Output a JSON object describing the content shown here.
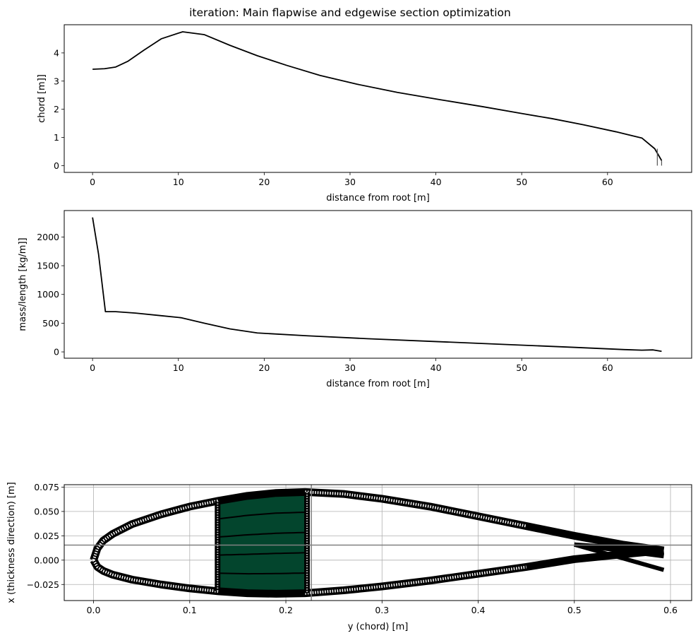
{
  "figure": {
    "title": "iteration: Main flapwise and edgewise section optimization"
  },
  "chart_data": [
    {
      "type": "line",
      "xlabel": "distance from root [m]",
      "ylabel": "chord [m]]",
      "xlim": [
        -3.3,
        69.8
      ],
      "ylim": [
        -0.24,
        5.0
      ],
      "xticks": [
        0,
        10,
        20,
        30,
        40,
        50,
        60
      ],
      "yticks": [
        0,
        1,
        2,
        3,
        4
      ],
      "grid": false,
      "series": [
        {
          "color": "#000000",
          "x": [
            0,
            1.4,
            2.7,
            4.1,
            6.0,
            8.0,
            10.5,
            13.0,
            16.0,
            19.2,
            22.6,
            26.5,
            30.8,
            35.5,
            40.5,
            45.5,
            50.0,
            53.5,
            57.2,
            61.0,
            64.0,
            65.5,
            66.3
          ],
          "y": [
            3.42,
            3.44,
            3.5,
            3.7,
            4.1,
            4.5,
            4.75,
            4.65,
            4.27,
            3.9,
            3.56,
            3.2,
            2.89,
            2.6,
            2.34,
            2.09,
            1.85,
            1.67,
            1.45,
            1.2,
            0.98,
            0.6,
            0.18
          ]
        },
        {
          "color": "#555555",
          "x": [
            65.8,
            65.8
          ],
          "y": [
            0.0,
            0.6
          ]
        },
        {
          "color": "#555555",
          "x": [
            66.3,
            66.3
          ],
          "y": [
            0.0,
            0.18
          ]
        }
      ]
    },
    {
      "type": "line",
      "xlabel": "distance from root [m]",
      "ylabel": "mass/length [kg/m]]",
      "xlim": [
        -3.3,
        69.8
      ],
      "ylim": [
        -110,
        2460
      ],
      "xticks": [
        0,
        10,
        20,
        30,
        40,
        50,
        60
      ],
      "yticks": [
        0,
        500,
        1000,
        1500,
        2000
      ],
      "grid": false,
      "series": [
        {
          "color": "#000000",
          "x": [
            0,
            0.7,
            1.5,
            2.7,
            5.0,
            8.0,
            10.3,
            13.0,
            16.0,
            19.2,
            25.0,
            32.0,
            40.0,
            48.0,
            56.0,
            62.0,
            64.0,
            65.3,
            66.3
          ],
          "y": [
            2340,
            1700,
            700,
            700,
            675,
            630,
            595,
            500,
            400,
            330,
            280,
            230,
            180,
            130,
            80,
            40,
            30,
            35,
            10
          ]
        }
      ]
    },
    {
      "type": "line",
      "xlabel": "y (chord) [m]",
      "ylabel": "x (thickness direction) [m]",
      "xlim": [
        -0.0305,
        0.622
      ],
      "ylim": [
        -0.0415,
        0.0775
      ],
      "xticks": [
        0.0,
        0.1,
        0.2,
        0.3,
        0.4,
        0.5,
        0.6
      ],
      "yticks": [
        -0.025,
        0.0,
        0.025,
        0.05,
        0.075
      ],
      "xticklabels": [
        "0.0",
        "0.1",
        "0.2",
        "0.3",
        "0.4",
        "0.5",
        "0.6"
      ],
      "yticklabels": [
        "−0.025",
        "0.000",
        "0.025",
        "0.050",
        "0.075"
      ],
      "grid": true,
      "reference_lines": {
        "horizontal": 0.0155,
        "vertical": 0.2265
      },
      "spar_fill_color": "#03452d",
      "spar_cap": {
        "y_start": 0.129,
        "y_end": 0.222
      },
      "upper_surface": {
        "x": [
          0,
          0.004,
          0.01,
          0.02,
          0.04,
          0.07,
          0.1,
          0.13,
          0.16,
          0.19,
          0.22,
          0.26,
          0.3,
          0.35,
          0.4,
          0.45,
          0.5,
          0.55,
          0.593
        ],
        "y": [
          0,
          0.012,
          0.02,
          0.027,
          0.037,
          0.047,
          0.055,
          0.061,
          0.066,
          0.069,
          0.07,
          0.068,
          0.063,
          0.055,
          0.045,
          0.035,
          0.025,
          0.016,
          0.01
        ]
      },
      "lower_surface": {
        "x": [
          0,
          0.004,
          0.01,
          0.02,
          0.04,
          0.07,
          0.1,
          0.13,
          0.16,
          0.19,
          0.22,
          0.26,
          0.3,
          0.35,
          0.4,
          0.45,
          0.5,
          0.55,
          0.593
        ],
        "y": [
          0,
          -0.007,
          -0.011,
          -0.015,
          -0.02,
          -0.025,
          -0.029,
          -0.032,
          -0.034,
          -0.0345,
          -0.034,
          -0.031,
          -0.027,
          -0.021,
          -0.014,
          -0.007,
          0.001,
          0.006,
          0.01
        ]
      },
      "trailing_edge_ends": [
        {
          "x": 0.593,
          "y": 0.01
        },
        {
          "x": 0.593,
          "y": 0.004
        },
        {
          "x": 0.593,
          "y": -0.01
        }
      ]
    }
  ]
}
